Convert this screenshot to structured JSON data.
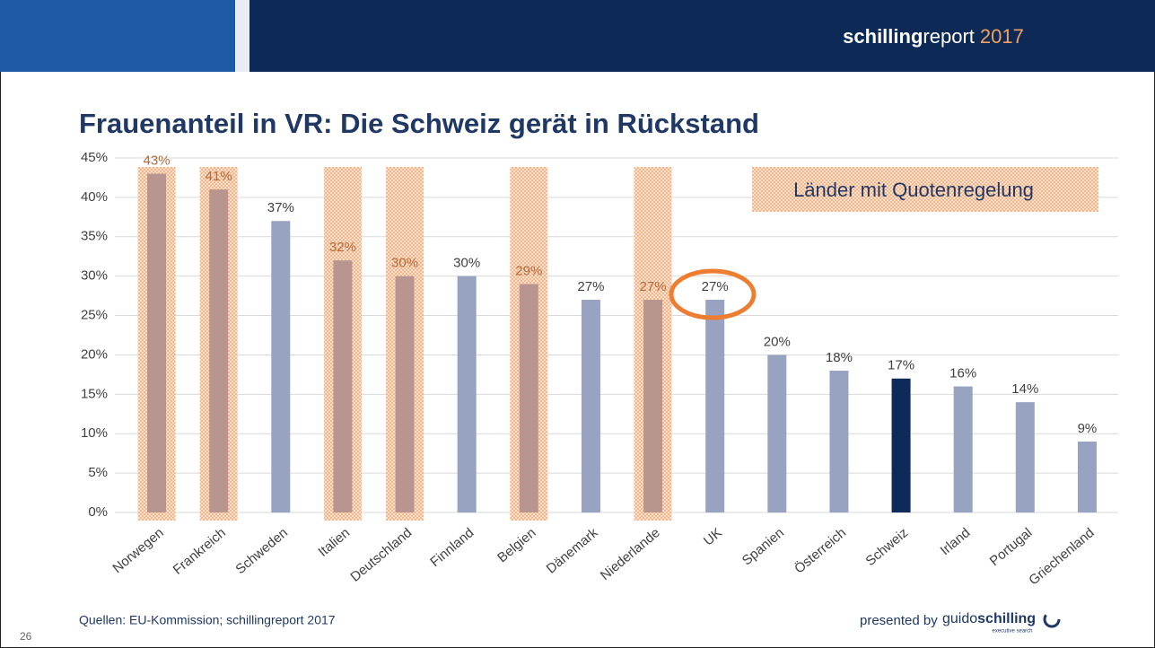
{
  "header": {
    "brand_bold": "schilling",
    "brand": "report",
    "year": "2017"
  },
  "footer": {
    "source": "Quellen: EU-Kommission; schillingreport 2017",
    "page": "26",
    "presented_by": "presented by",
    "logo_light": "guido",
    "logo_bold": "schilling",
    "logo_sub": "executive search"
  },
  "chart_data": {
    "type": "bar",
    "title": "Frauenanteil in VR: Die Schweiz gerät in Rückstand",
    "categories": [
      "Norwegen",
      "Frankreich",
      "Schweden",
      "Italien",
      "Deutschland",
      "Finnland",
      "Belgien",
      "Dänemark",
      "Niederlande",
      "UK",
      "Spanien",
      "Österreich",
      "Schweiz",
      "Irland",
      "Portugal",
      "Griechenland"
    ],
    "values": [
      43,
      41,
      37,
      32,
      30,
      30,
      29,
      27,
      27,
      27,
      20,
      18,
      17,
      16,
      14,
      9
    ],
    "value_labels": [
      "43%",
      "41%",
      "37%",
      "32%",
      "30%",
      "30%",
      "29%",
      "27%",
      "27%",
      "27%",
      "20%",
      "18%",
      "17%",
      "16%",
      "14%",
      "9%"
    ],
    "colors": [
      "#b8968f",
      "#b8968f",
      "#97a3c0",
      "#b8968f",
      "#b8968f",
      "#97a3c0",
      "#b8968f",
      "#97a3c0",
      "#b8968f",
      "#97a3c0",
      "#97a3c0",
      "#97a3c0",
      "#0e2a58",
      "#97a3c0",
      "#97a3c0",
      "#97a3c0"
    ],
    "quota": [
      true,
      true,
      false,
      true,
      true,
      false,
      true,
      false,
      true,
      false,
      false,
      false,
      false,
      false,
      false,
      false
    ],
    "legend_label": "Länder mit Quotenregelung",
    "ylim": [
      0,
      45
    ],
    "yticks": [
      {
        "value": 0,
        "label": "0%"
      },
      {
        "value": 5,
        "label": "5%"
      },
      {
        "value": 10,
        "label": "10%"
      },
      {
        "value": 15,
        "label": "15%"
      },
      {
        "value": 20,
        "label": "20%"
      },
      {
        "value": 25,
        "label": "25%"
      },
      {
        "value": 30,
        "label": "30%"
      },
      {
        "value": 35,
        "label": "35%"
      },
      {
        "value": 40,
        "label": "40%"
      },
      {
        "value": 45,
        "label": "45%"
      }
    ],
    "grid": true
  }
}
